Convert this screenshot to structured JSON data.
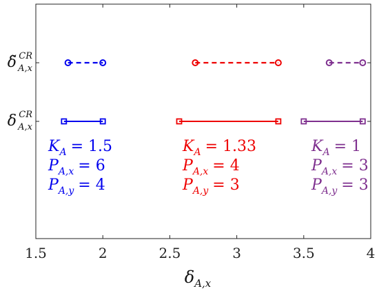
{
  "chart_data": {
    "type": "interval",
    "xlabel": "δ",
    "xlabel_sub": "A,x",
    "xlim": [
      1.5,
      4
    ],
    "x_ticks": [
      {
        "value": 1.5,
        "label": "1.5"
      },
      {
        "value": 2,
        "label": "2"
      },
      {
        "value": 2.5,
        "label": "2.5"
      },
      {
        "value": 3,
        "label": "3"
      },
      {
        "value": 3.5,
        "label": "3.5"
      },
      {
        "value": 4,
        "label": "4"
      }
    ],
    "y_labels": [
      {
        "base": "δ̃",
        "sup": "CR",
        "sub": "A,x"
      },
      {
        "base": "δ",
        "sup": "CR",
        "sub": "A,x"
      }
    ],
    "series": [
      {
        "color": "#0000ee",
        "dashed": [
          1.74,
          2.0
        ],
        "solid": [
          1.71,
          2.0
        ],
        "annotations": [
          {
            "var": "K",
            "sub": "A",
            "rhs": "= 1.5"
          },
          {
            "var": "P",
            "sub": "A,x",
            "rhs": "= 6"
          },
          {
            "var": "P",
            "sub": "A,y",
            "rhs": "= 4"
          }
        ]
      },
      {
        "color": "#ee0000",
        "dashed": [
          2.69,
          3.31
        ],
        "solid": [
          2.57,
          3.31
        ],
        "annotations": [
          {
            "var": "K",
            "sub": "A",
            "rhs": "= 1.33"
          },
          {
            "var": "P",
            "sub": "A,x",
            "rhs": "= 4"
          },
          {
            "var": "P",
            "sub": "A,y",
            "rhs": "= 3"
          }
        ]
      },
      {
        "color": "#7e2f8e",
        "dashed": [
          3.69,
          3.94
        ],
        "solid": [
          3.5,
          3.94
        ],
        "annotations": [
          {
            "var": "K",
            "sub": "A",
            "rhs": "= 1"
          },
          {
            "var": "P",
            "sub": "A,x",
            "rhs": "= 3"
          },
          {
            "var": "P",
            "sub": "A,y",
            "rhs": "= 3"
          }
        ]
      }
    ]
  }
}
